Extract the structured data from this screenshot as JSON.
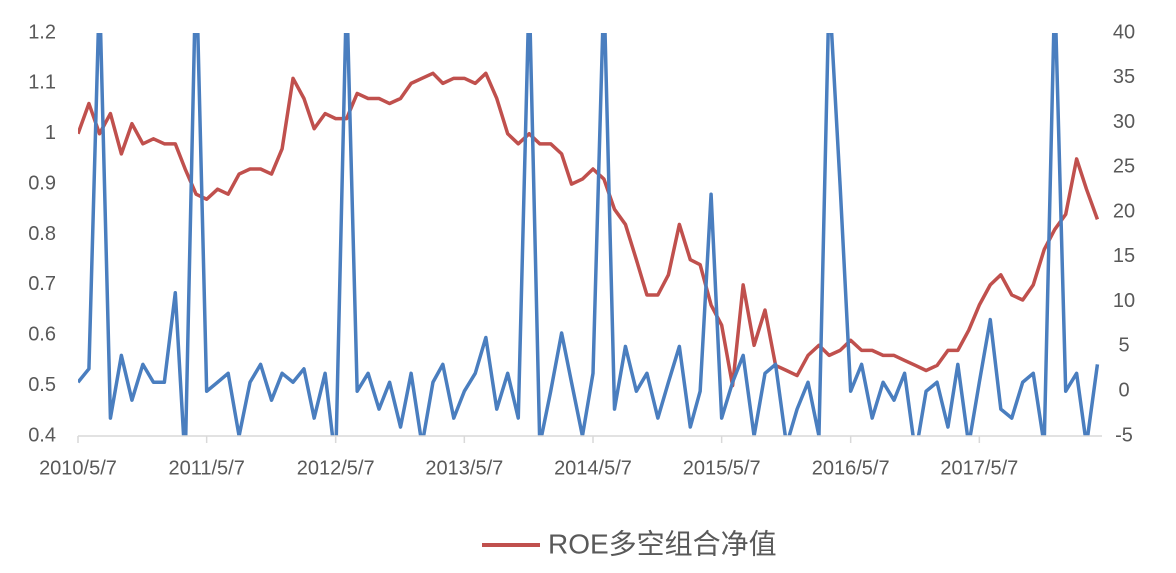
{
  "chart_data": {
    "type": "line",
    "x": [
      "2010/5/7",
      "2010/6/7",
      "2010/7/7",
      "2010/8/7",
      "2010/9/7",
      "2010/10/7",
      "2010/11/7",
      "2010/12/7",
      "2011/1/7",
      "2011/2/7",
      "2011/3/7",
      "2011/4/7",
      "2011/5/7",
      "2011/6/7",
      "2011/7/7",
      "2011/8/7",
      "2011/9/7",
      "2011/10/7",
      "2011/11/7",
      "2011/12/7",
      "2012/1/7",
      "2012/2/7",
      "2012/3/7",
      "2012/4/7",
      "2012/5/7",
      "2012/6/7",
      "2012/7/7",
      "2012/8/7",
      "2012/9/7",
      "2012/10/7",
      "2012/11/7",
      "2012/12/7",
      "2013/1/7",
      "2013/2/7",
      "2013/3/7",
      "2013/4/7",
      "2013/5/7",
      "2013/6/7",
      "2013/7/7",
      "2013/8/7",
      "2013/9/7",
      "2013/10/7",
      "2013/11/7",
      "2013/12/7",
      "2014/1/7",
      "2014/2/7",
      "2014/3/7",
      "2014/4/7",
      "2014/5/7",
      "2014/6/7",
      "2014/7/7",
      "2014/8/7",
      "2014/9/7",
      "2014/10/7",
      "2014/11/7",
      "2014/12/7",
      "2015/1/7",
      "2015/2/7",
      "2015/3/7",
      "2015/4/7",
      "2015/5/7",
      "2015/6/7",
      "2015/7/7",
      "2015/8/7",
      "2015/9/7",
      "2015/10/7",
      "2015/11/7",
      "2015/12/7",
      "2016/1/7",
      "2016/2/7",
      "2016/3/7",
      "2016/4/7",
      "2016/5/7",
      "2016/6/7",
      "2016/7/7",
      "2016/8/7",
      "2016/9/7",
      "2016/10/7",
      "2016/11/7",
      "2016/12/7",
      "2017/1/7",
      "2017/2/7",
      "2017/3/7",
      "2017/4/7",
      "2017/5/7",
      "2017/6/7",
      "2017/7/7",
      "2017/8/7",
      "2017/9/7",
      "2017/10/7",
      "2017/11/7",
      "2017/12/7",
      "2018/1/7",
      "2018/2/7",
      "2018/3/7",
      "2018/4/7"
    ],
    "series": [
      {
        "name": "ROE多空组合净值",
        "color": "#c0504d",
        "values": [
          1.0,
          1.06,
          1.0,
          1.04,
          0.96,
          1.02,
          0.98,
          0.99,
          0.98,
          0.98,
          0.93,
          0.88,
          0.87,
          0.89,
          0.88,
          0.92,
          0.93,
          0.93,
          0.92,
          0.97,
          1.11,
          1.07,
          1.01,
          1.04,
          1.03,
          1.03,
          1.08,
          1.07,
          1.07,
          1.06,
          1.07,
          1.1,
          1.11,
          1.12,
          1.1,
          1.11,
          1.11,
          1.1,
          1.12,
          1.07,
          1.0,
          0.98,
          1.0,
          0.98,
          0.98,
          0.96,
          0.9,
          0.91,
          0.93,
          0.91,
          0.85,
          0.82,
          0.75,
          0.68,
          0.68,
          0.72,
          0.82,
          0.75,
          0.74,
          0.66,
          0.62,
          0.5,
          0.7,
          0.58,
          0.65,
          0.54,
          0.53,
          0.52,
          0.56,
          0.58,
          0.56,
          0.57,
          0.59,
          0.57,
          0.57,
          0.56,
          0.56,
          0.55,
          0.54,
          0.53,
          0.54,
          0.57,
          0.57,
          0.61,
          0.66,
          0.7,
          0.72,
          0.68,
          0.67,
          0.7,
          0.77,
          0.81,
          0.84,
          0.95,
          0.89,
          0.83
        ]
      },
      {
        "color": "#4a7ebf",
        "axis": "y2",
        "values": [
          1,
          2.5,
          45,
          -3,
          4,
          -1,
          3,
          1,
          1,
          11,
          -8,
          48,
          0,
          1,
          2,
          -5,
          1,
          3,
          -1,
          2,
          1,
          2.5,
          -3,
          2,
          -8,
          45,
          0,
          2,
          -2,
          1,
          -4,
          2,
          -6,
          1,
          3,
          -3,
          0,
          2,
          6,
          -2,
          2,
          -3,
          45,
          -6,
          0,
          6.5,
          1,
          -5,
          2,
          45,
          -2,
          5,
          0,
          2,
          -3,
          1,
          5,
          -4,
          0,
          22,
          -3,
          1,
          4,
          -5,
          2,
          3,
          -6,
          -2,
          1,
          -5,
          45,
          23,
          0,
          3,
          -3,
          1,
          -1,
          2,
          -7,
          0,
          1,
          -4,
          3,
          -6,
          1,
          8,
          -2,
          -3,
          1,
          2,
          -6,
          45,
          0,
          2,
          -6,
          3
        ]
      }
    ],
    "xlim": [
      "2010/5/7",
      "2018/4/20"
    ],
    "xticks": [
      "2010/5/7",
      "2011/5/7",
      "2012/5/7",
      "2013/5/7",
      "2014/5/7",
      "2015/5/7",
      "2016/5/7",
      "2017/5/7"
    ],
    "ylim": [
      0.4,
      1.2
    ],
    "yticks": [
      0.4,
      0.5,
      0.6,
      0.7,
      0.8,
      0.9,
      1,
      1.1,
      1.2
    ],
    "y2lim": [
      -5,
      40
    ],
    "y2ticks": [
      -5,
      0,
      5,
      10,
      15,
      20,
      25,
      30,
      35,
      40
    ],
    "grid": false,
    "legend": "bottom"
  }
}
